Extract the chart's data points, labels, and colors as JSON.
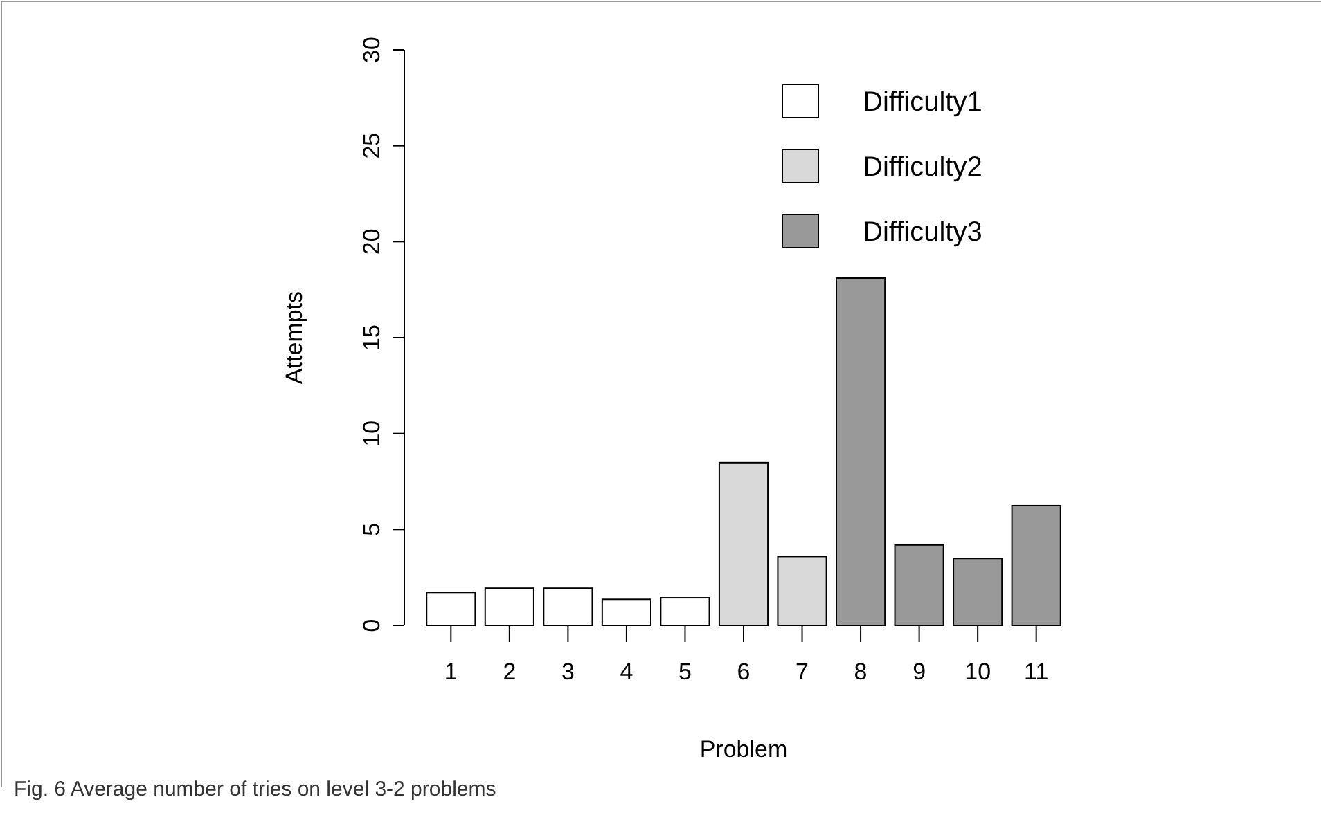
{
  "chart_data": {
    "type": "bar",
    "xlabel": "Problem",
    "ylabel": "Attempts",
    "categories": [
      "1",
      "2",
      "3",
      "4",
      "5",
      "6",
      "7",
      "8",
      "9",
      "10",
      "11"
    ],
    "series": [
      {
        "name": "Difficulty1",
        "color": "#ffffff",
        "values": [
          1.72,
          1.94,
          1.94,
          1.36,
          1.44,
          null,
          null,
          null,
          null,
          null,
          null
        ]
      },
      {
        "name": "Difficulty2",
        "color": "#d9d9d9",
        "values": [
          null,
          null,
          null,
          null,
          null,
          8.48,
          3.59,
          null,
          null,
          null,
          null
        ]
      },
      {
        "name": "Difficulty3",
        "color": "#999999",
        "values": [
          null,
          null,
          null,
          null,
          null,
          null,
          null,
          18.1,
          4.19,
          3.49,
          6.24
        ]
      }
    ],
    "ylim": [
      0,
      30
    ],
    "yticks": [
      0,
      5,
      10,
      15,
      20,
      25,
      30
    ],
    "legend": "top right",
    "annotations": [
      "Fig. 6  Average number of tries on level 3-2 problems"
    ]
  }
}
